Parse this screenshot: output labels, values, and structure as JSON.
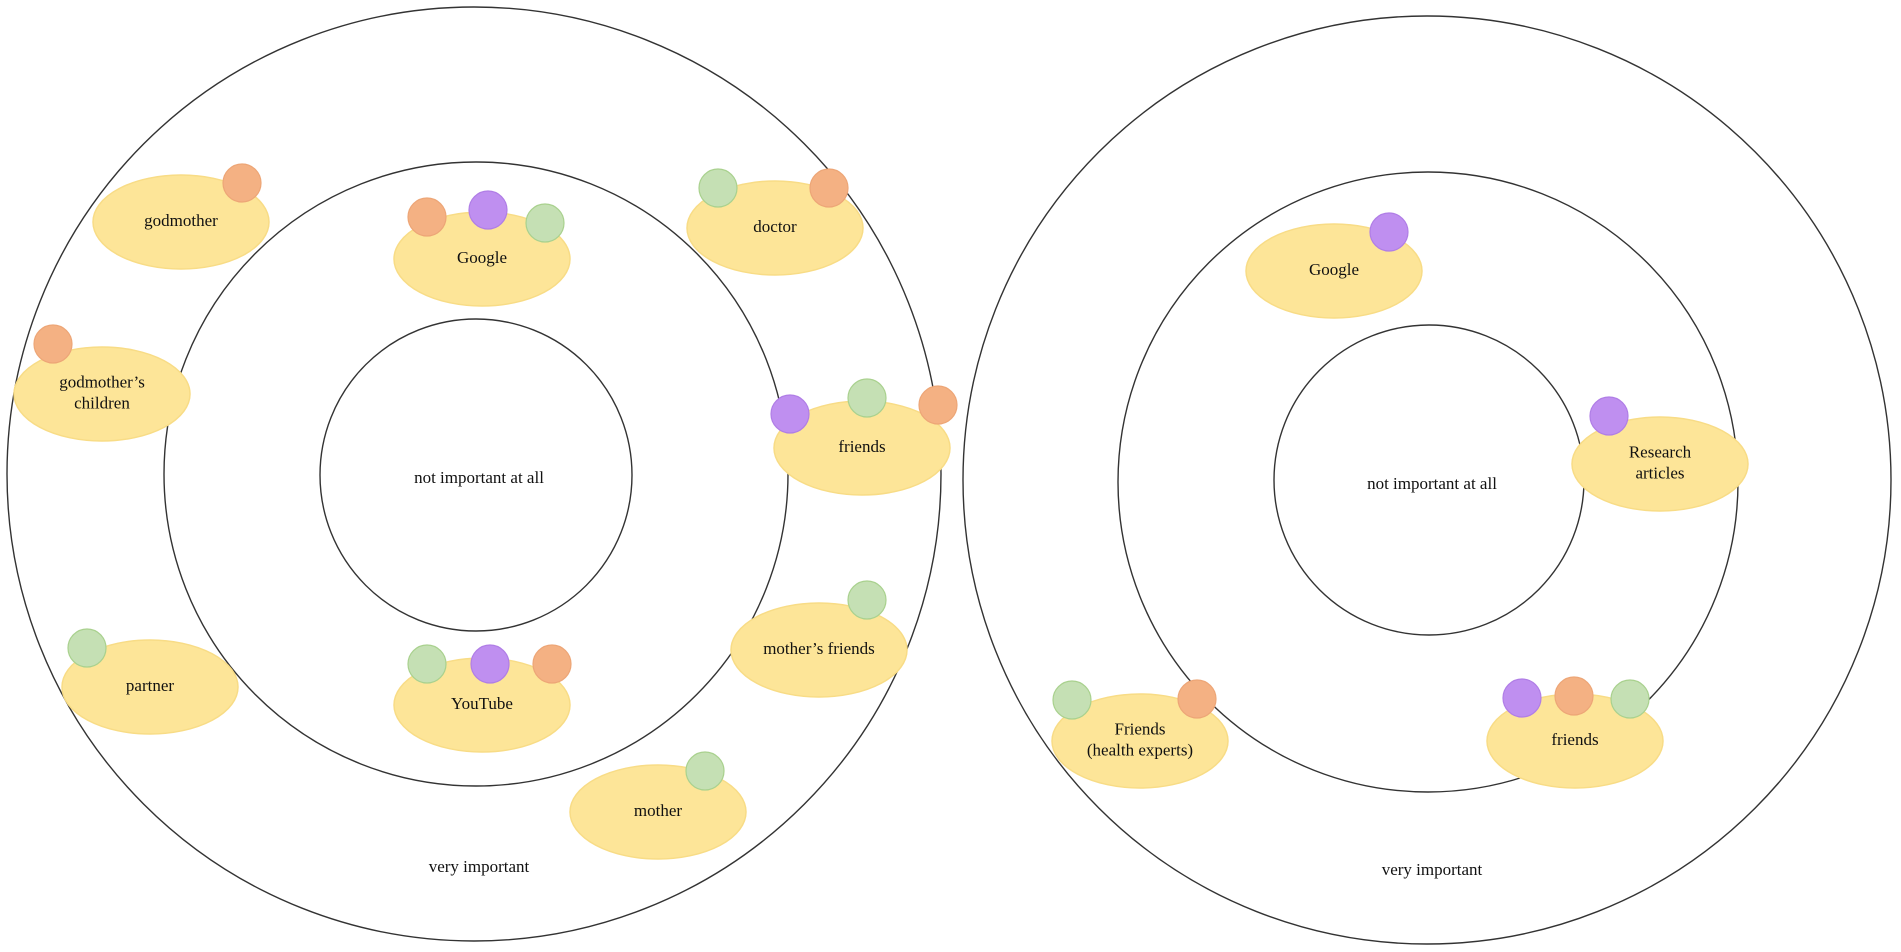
{
  "colors": {
    "node_fill": "#fde598",
    "node_stroke": "#f8dc86",
    "green": "#c5e0b4",
    "orange": "#f4b183",
    "purple": "#bf8ff0",
    "ring_stroke": "#333333"
  },
  "diagrams": [
    {
      "center_label": "not important at all",
      "outer_label": "very important",
      "nodes": [
        {
          "label": [
            "godmother"
          ],
          "markers": [
            "orange"
          ]
        },
        {
          "label": [
            "godmother’s",
            "children"
          ],
          "markers": [
            "orange"
          ]
        },
        {
          "label": [
            "Google"
          ],
          "markers": [
            "orange",
            "purple",
            "green"
          ]
        },
        {
          "label": [
            "doctor"
          ],
          "markers": [
            "green",
            "orange"
          ]
        },
        {
          "label": [
            "friends"
          ],
          "markers": [
            "purple",
            "green",
            "orange"
          ]
        },
        {
          "label": [
            "partner"
          ],
          "markers": [
            "green"
          ]
        },
        {
          "label": [
            "YouTube"
          ],
          "markers": [
            "green",
            "purple",
            "orange"
          ]
        },
        {
          "label": [
            "mother’s friends"
          ],
          "markers": [
            "green"
          ]
        },
        {
          "label": [
            "mother"
          ],
          "markers": [
            "green"
          ]
        }
      ]
    },
    {
      "center_label": "not important at all",
      "outer_label": "very important",
      "nodes": [
        {
          "label": [
            "Google"
          ],
          "markers": [
            "purple"
          ]
        },
        {
          "label": [
            "Research",
            "articles"
          ],
          "markers": [
            "purple"
          ]
        },
        {
          "label": [
            "Friends",
            "(health experts)"
          ],
          "markers": [
            "green",
            "orange"
          ]
        },
        {
          "label": [
            "friends"
          ],
          "markers": [
            "purple",
            "orange",
            "green"
          ]
        }
      ]
    }
  ]
}
